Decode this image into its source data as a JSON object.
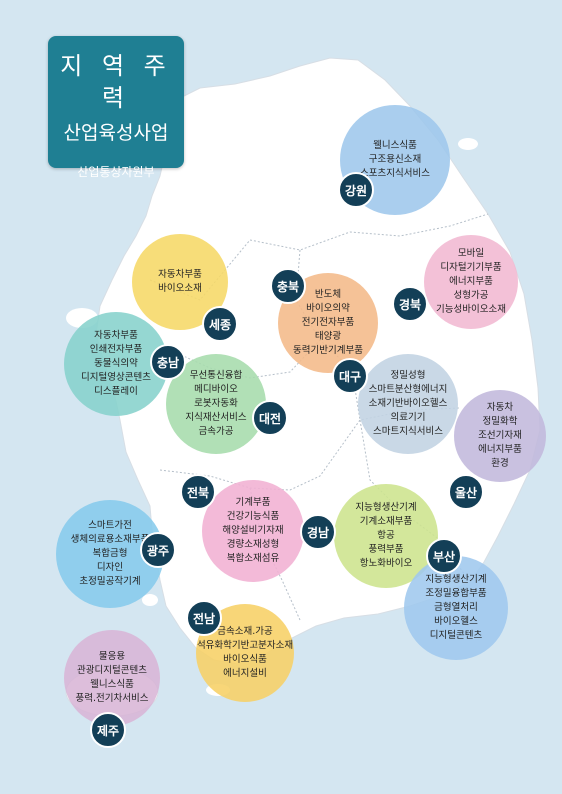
{
  "title": {
    "line1": "지 역 주 력",
    "line2": "산업육성사업",
    "line3": "산업통상자원부"
  },
  "regions": [
    {
      "key": "gangwon",
      "name": "강원",
      "color": "#9ec7ec",
      "items": [
        "웰니스식품",
        "구조용신소재",
        "스포츠지식서비스"
      ]
    },
    {
      "key": "sejong",
      "name": "세종",
      "color": "#f6d866",
      "items": [
        "자동차부품",
        "바이오소재"
      ]
    },
    {
      "key": "chungbuk",
      "name": "충북",
      "color": "#f4ba89",
      "items": [
        "반도체",
        "바이오의약",
        "전기전자부품",
        "태양광",
        "동력기반기계부품"
      ]
    },
    {
      "key": "gyeongbuk",
      "name": "경북",
      "color": "#f1b8d1",
      "items": [
        "모바일",
        "디자털기기부품",
        "에너지부품",
        "성형가공",
        "기능성바이오소재"
      ]
    },
    {
      "key": "chungnam",
      "name": "충남",
      "color": "#86d2cc",
      "items": [
        "자동차부품",
        "인쇄전자부품",
        "동물식의약",
        "디지털영상콘텐츠",
        "디스플레이"
      ]
    },
    {
      "key": "daejeon",
      "name": "대전",
      "color": "#a6dcac",
      "items": [
        "무선통신융합",
        "메디바이오",
        "로봇자동화",
        "지식재산서비스",
        "금속가공"
      ]
    },
    {
      "key": "daegu",
      "name": "대구",
      "color": "#c1d3e2",
      "items": [
        "정밀성형",
        "스마트분산형에너지",
        "소재기반바이오헬스",
        "의료기기",
        "스마트지식서비스"
      ]
    },
    {
      "key": "ulsan",
      "name": "울산",
      "color": "#c2b8dc",
      "items": [
        "자동차",
        "정밀화학",
        "조선기자재",
        "에너지부품",
        "환경"
      ]
    },
    {
      "key": "jeonbuk",
      "name": "전북",
      "color": "#f1b0d3",
      "items": [
        "기계부품",
        "건강기능식품",
        "해양설비기자재",
        "경량소재성형",
        "복합소재섬유"
      ]
    },
    {
      "key": "gyeongnam",
      "name": "경남",
      "color": "#cde48d",
      "items": [
        "지능형생산기계",
        "기계소재부품",
        "항공",
        "풍력부품",
        "항노화바이오"
      ]
    },
    {
      "key": "gwangju",
      "name": "광주",
      "color": "#86cbec",
      "items": [
        "스마트가전",
        "생체의료용소재부품",
        "복합금형",
        "디자인",
        "초정밀공작기계"
      ]
    },
    {
      "key": "busan",
      "name": "부산",
      "color": "#9fc8ee",
      "items": [
        "지능형생산기계",
        "조정밀융합부품",
        "금형열처리",
        "바이오헬스",
        "디지털콘텐츠"
      ]
    },
    {
      "key": "jeonnam",
      "name": "전남",
      "color": "#f7d065",
      "items": [
        "금속소재.가공",
        "석유화학기반고분자소재",
        "바이오식품",
        "에너지설비"
      ]
    },
    {
      "key": "jeju",
      "name": "제주",
      "color": "#d8b5d6",
      "items": [
        "물응용",
        "관광디지털콘텐츠",
        "웰니스식품",
        "풍력.전기차서비스"
      ]
    }
  ]
}
